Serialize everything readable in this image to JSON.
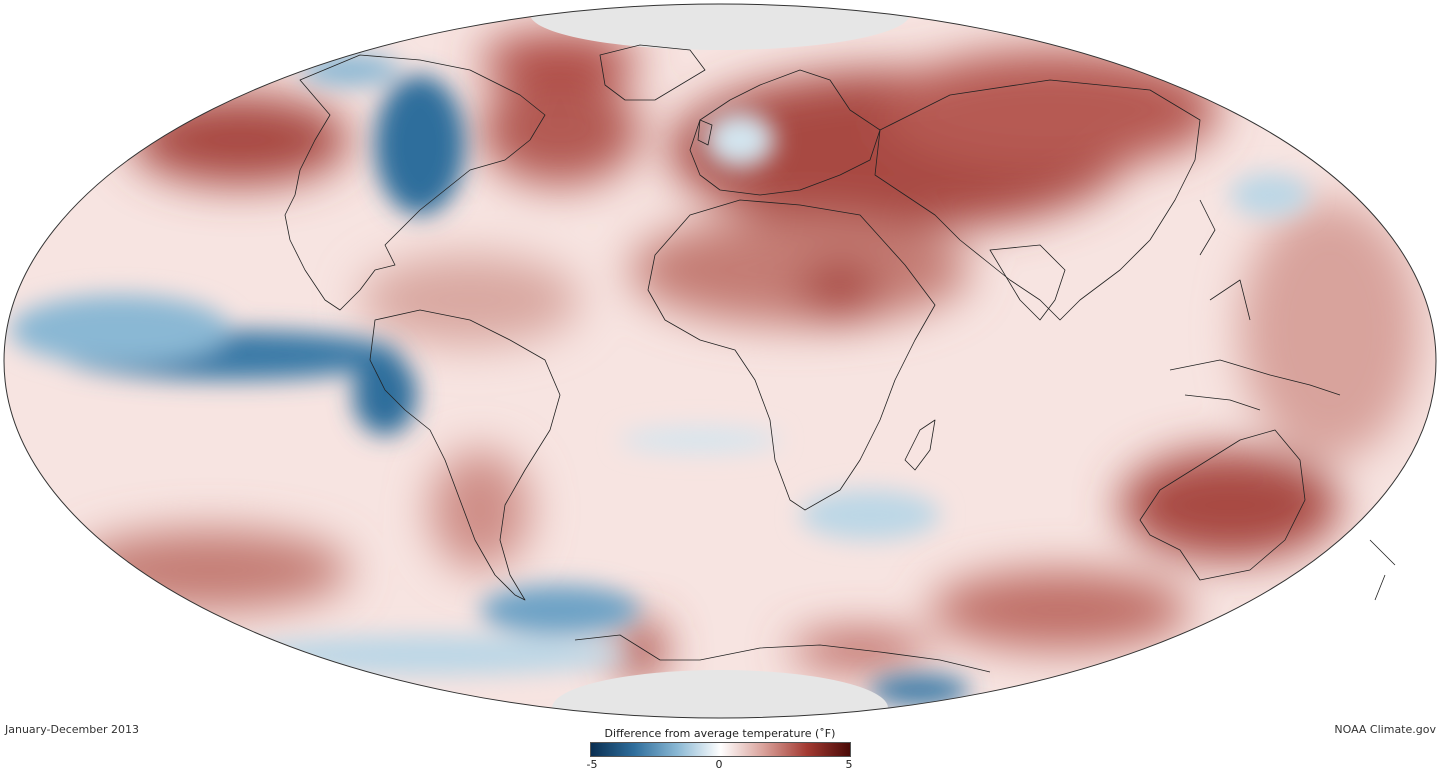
{
  "map": {
    "projection": "Mollweide",
    "variable": "surface temperature anomaly",
    "warm_regions": [
      "Eurasia",
      "Australia",
      "North Africa",
      "North Pacific",
      "Southern Ocean (Indian sector)"
    ],
    "cool_regions": [
      "Eastern tropical Pacific",
      "Central North America",
      "Western Antarctica coast"
    ]
  },
  "caption": {
    "period": "January-December 2013",
    "source": "NOAA Climate.gov"
  },
  "legend": {
    "title": "Difference from average temperature (˚F)",
    "min_label": "-5",
    "mid_label": "0",
    "max_label": "5",
    "colors": [
      "#0a2f52",
      "#2f6e9c",
      "#8ab8d4",
      "#ffffff",
      "#d9a19a",
      "#a33a32",
      "#4a0a07"
    ]
  },
  "colors": {
    "warm": "#a84a42",
    "warm_light": "#e8c2bc",
    "cool": "#3a7aa7",
    "cool_light": "#bcd7e6",
    "land_outline": "#222222",
    "polar_nodata": "#e6e6e6"
  }
}
